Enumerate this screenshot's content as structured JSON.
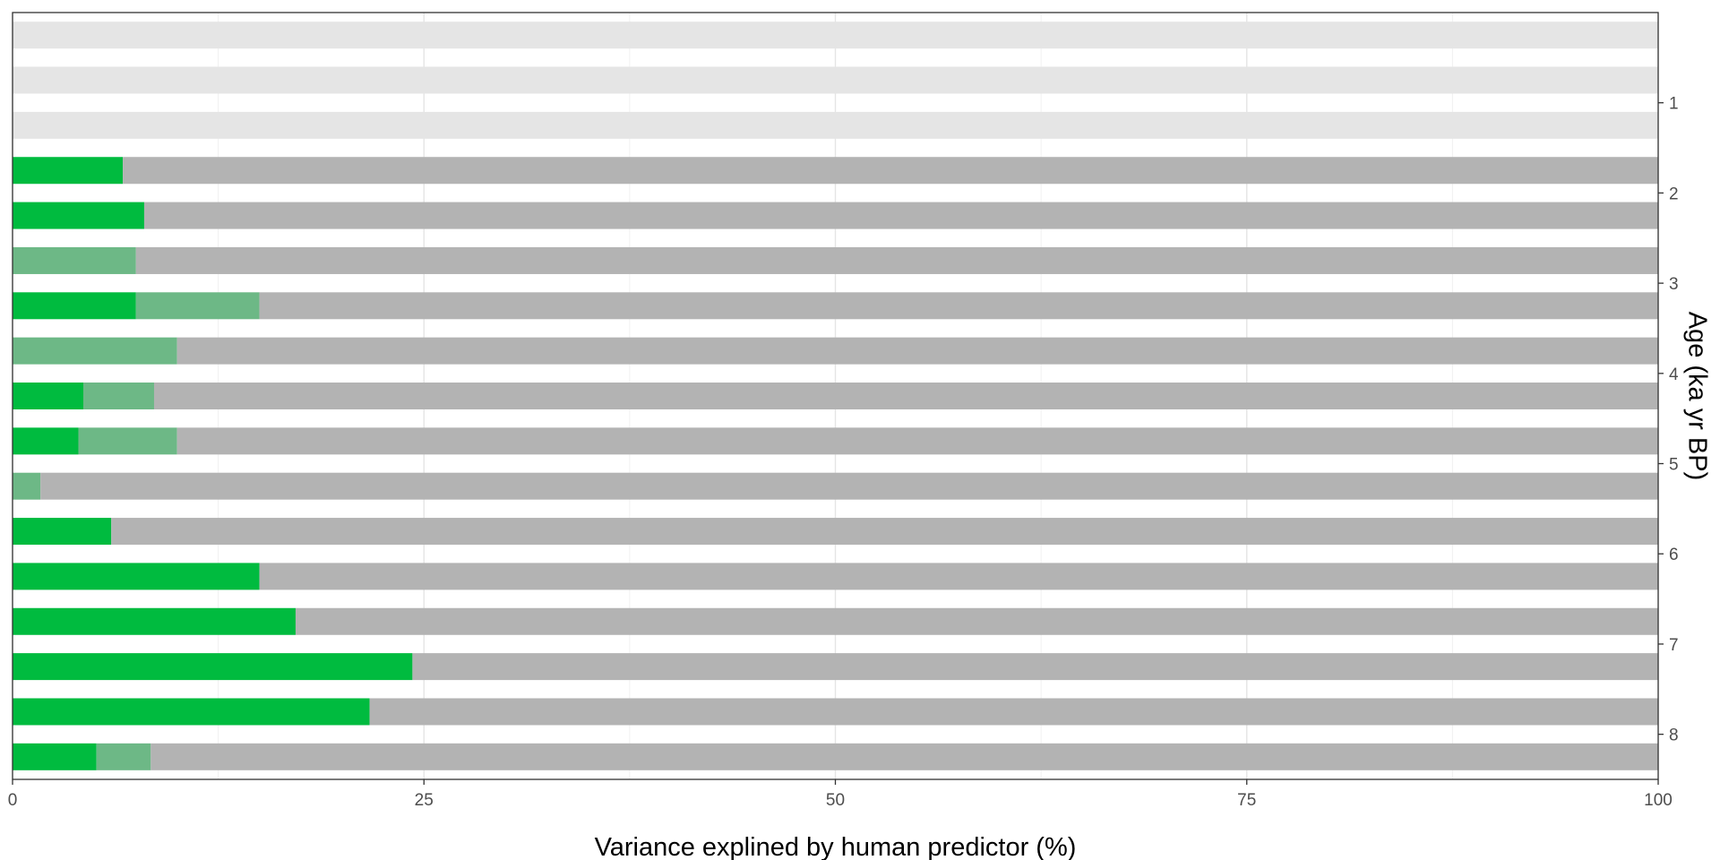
{
  "chart_data": {
    "type": "bar",
    "orientation": "horizontal",
    "stacked": true,
    "title": "",
    "xlabel": "Variance explined by human predictor (%)",
    "ylabel": "Age (ka yr BP)",
    "xlim": [
      0,
      100
    ],
    "x_ticks": [
      0,
      25,
      50,
      75,
      100
    ],
    "x_tick_labels": [
      "0",
      "25",
      "50",
      "75",
      "100"
    ],
    "ylim": [
      0,
      8.5
    ],
    "y_ticks": [
      1,
      2,
      3,
      4,
      5,
      6,
      7,
      8
    ],
    "y_tick_labels": [
      "1",
      "2",
      "3",
      "4",
      "5",
      "6",
      "7",
      "8"
    ],
    "y_axis_position": "right",
    "grid": true,
    "legend": "none",
    "categories": [
      0.25,
      0.75,
      1.25,
      1.75,
      2.25,
      2.75,
      3.25,
      3.75,
      4.25,
      4.75,
      5.25,
      5.75,
      6.25,
      6.75,
      7.25,
      7.75,
      8.25
    ],
    "series": [
      {
        "color": "#00bb3f",
        "values": [
          0,
          0,
          0,
          6.7,
          8.0,
          0,
          7.5,
          0,
          4.3,
          4.0,
          0,
          6.0,
          15.0,
          17.2,
          24.3,
          21.7,
          5.1
        ]
      },
      {
        "color": "#6db886",
        "values": [
          0,
          0,
          0,
          0,
          0,
          7.5,
          7.5,
          10.0,
          4.3,
          6.0,
          1.7,
          0,
          0,
          0,
          0,
          0,
          3.3
        ]
      },
      {
        "color": "#b3b3b3",
        "values": [
          0,
          0,
          0,
          93.3,
          92.0,
          92.5,
          85.0,
          90.0,
          91.4,
          90.0,
          98.3,
          94.0,
          85.0,
          82.8,
          75.7,
          78.3,
          91.6
        ]
      },
      {
        "color": "#e5e5e5",
        "values": [
          100,
          100,
          100,
          0,
          0,
          0,
          0,
          0,
          0,
          0,
          0,
          0,
          0,
          0,
          0,
          0,
          0
        ]
      }
    ]
  }
}
